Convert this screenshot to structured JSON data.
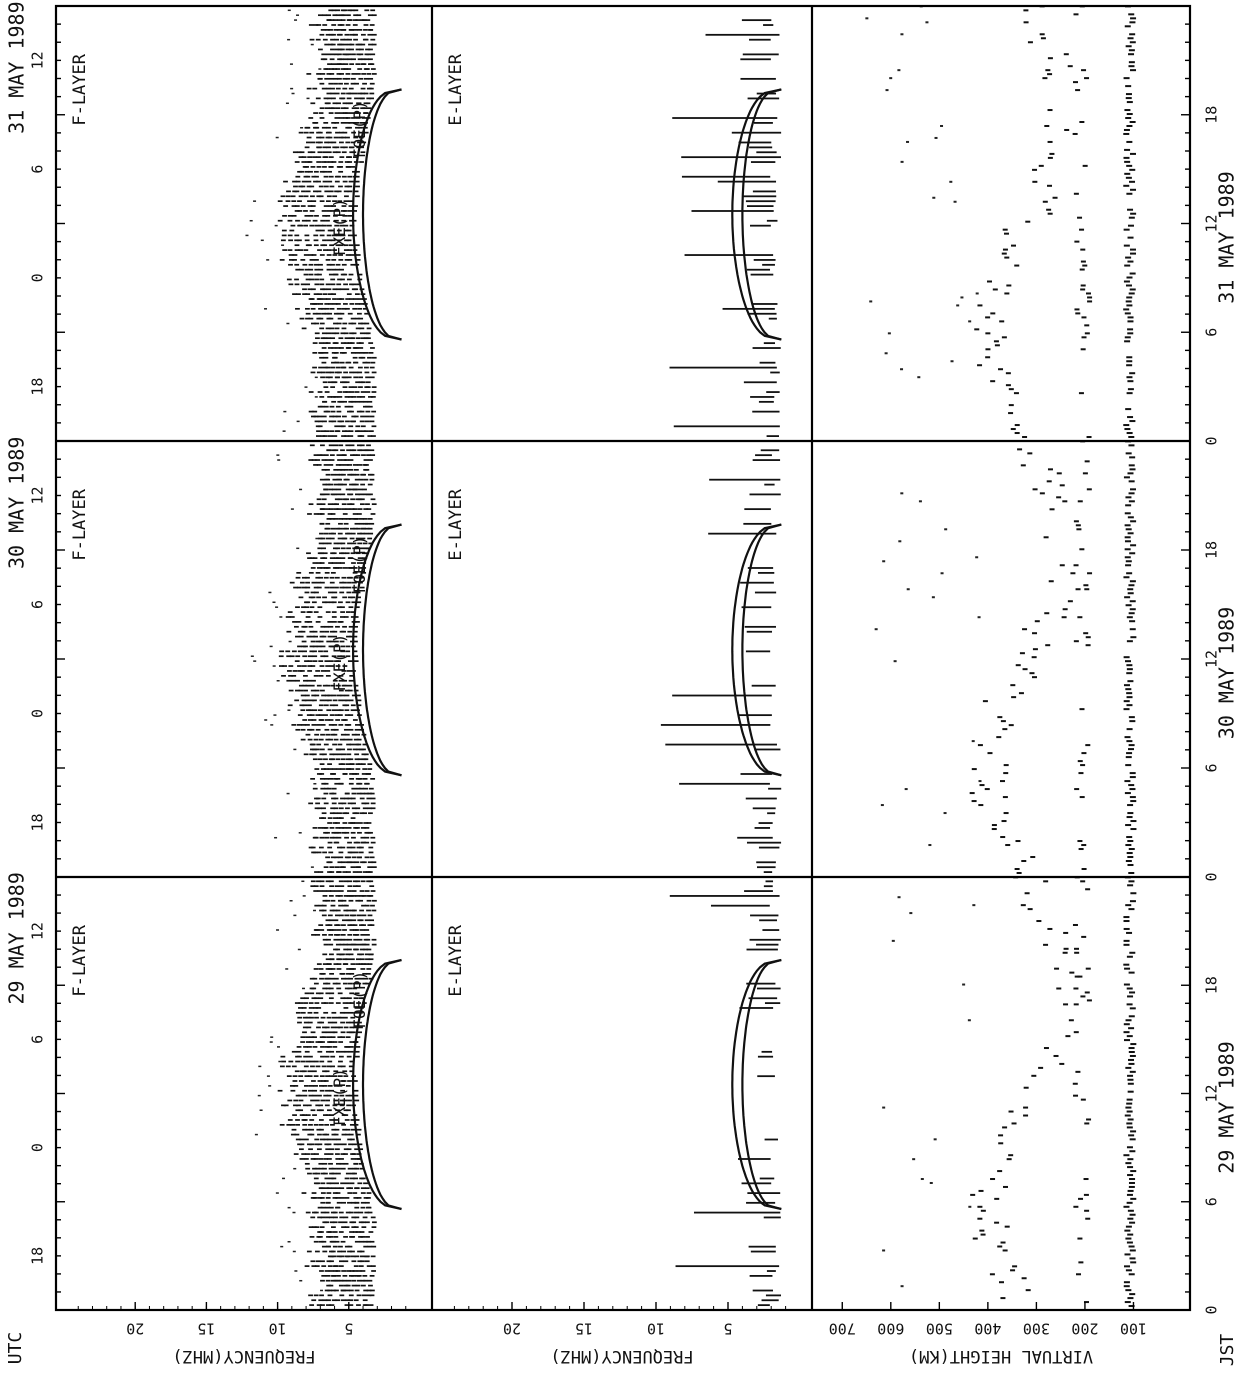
{
  "figure": {
    "top_axis_label": "UTC",
    "bottom_axis_label": "JST",
    "panel_y_labels": [
      "FREQUENCY(MHZ)",
      "FREQUENCY(MHZ)",
      "VIRTUAL HEIGHT(KM)"
    ]
  },
  "chart_data": {
    "type": "scatter",
    "days": [
      {
        "utc_title": "29 MAY 1989",
        "jst_title": "29 MAY 1989",
        "utc_ticks": [
          "18",
          "0",
          "6",
          "12"
        ],
        "jst_ticks": [
          "0",
          "6",
          "12",
          "18"
        ],
        "f_layer_label": "F-LAYER",
        "e_layer_label": "E-LAYER",
        "fxe_label": "FXE(P)",
        "foe_label": "FOE(P)"
      },
      {
        "utc_title": "30 MAY 1989",
        "jst_title": "30 MAY 1989",
        "utc_ticks": [
          "18",
          "0",
          "6",
          "12"
        ],
        "jst_ticks": [
          "0",
          "6",
          "12",
          "18"
        ],
        "f_layer_label": "F-LAYER",
        "e_layer_label": "E-LAYER",
        "fxe_label": "FXE(P)",
        "foe_label": "FOE(P)"
      },
      {
        "utc_title": "31 MAY 1989",
        "jst_title": "31 MAY 1989",
        "utc_ticks": [
          "18",
          "0",
          "6",
          "12"
        ],
        "jst_ticks": [
          "0",
          "6",
          "12",
          "18"
        ],
        "f_layer_label": "F-LAYER",
        "e_layer_label": "E-LAYER",
        "fxe_label": "FXE(P)",
        "foe_label": "FOE(P)"
      }
    ],
    "frequency_axis": {
      "ticks": [
        "5",
        "10",
        "15",
        "20"
      ],
      "values": [
        5,
        10,
        15,
        20
      ],
      "range": [
        0,
        25
      ],
      "unit": "MHZ"
    },
    "height_axis": {
      "ticks": [
        "100",
        "200",
        "300",
        "400",
        "500",
        "600",
        "700"
      ],
      "values": [
        100,
        200,
        300,
        400,
        500,
        600,
        700
      ],
      "range": [
        0,
        750
      ],
      "unit": "KM"
    },
    "jst_hour_range": [
      0,
      24
    ],
    "utc_offset_hours": 9,
    "foe_curve_peak_mhz": 4,
    "fxe_curve_peak_mhz": 4.7,
    "grid": false
  }
}
